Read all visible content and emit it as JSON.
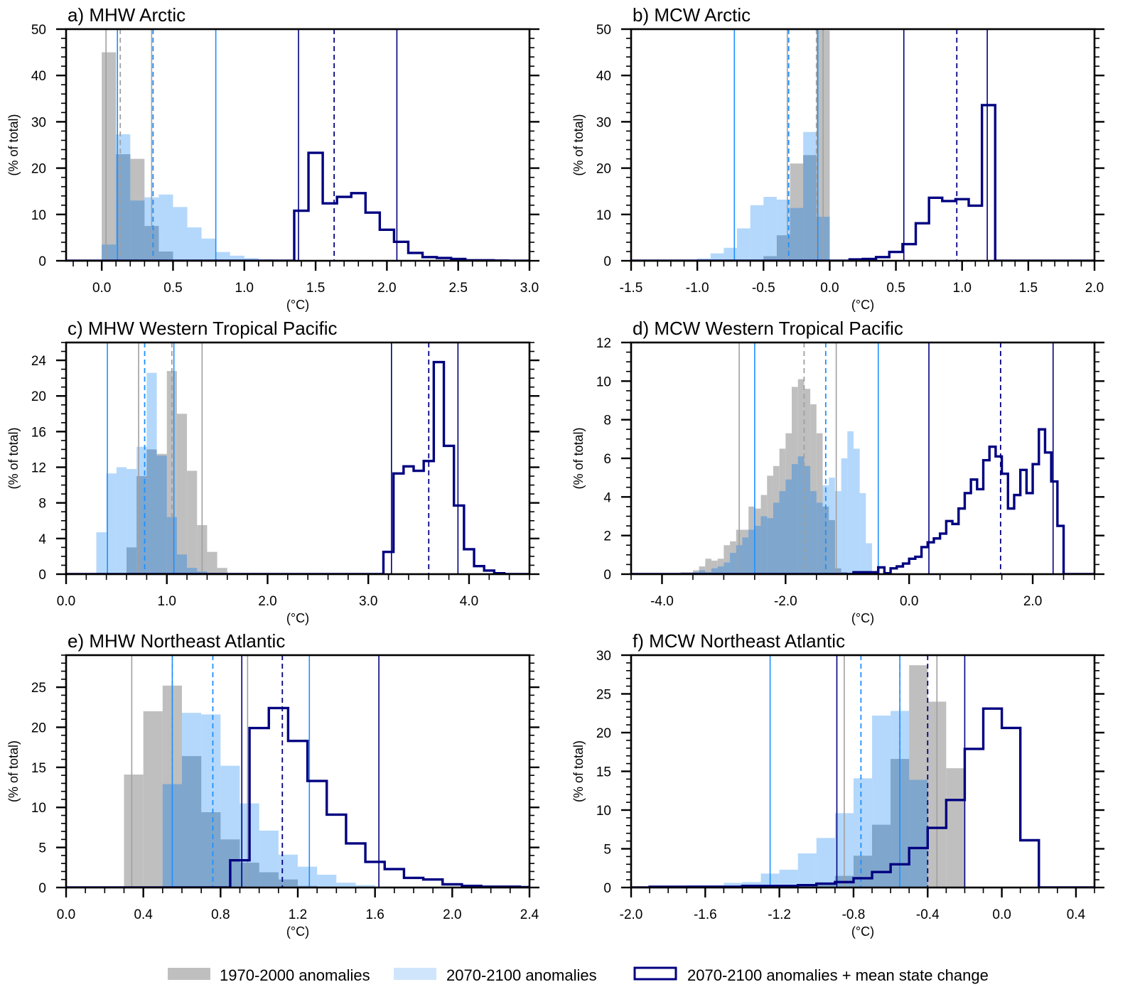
{
  "chart_data": [
    {
      "id": "a",
      "type": "bar",
      "title": "a) MHW Arctic",
      "xlabel": "(°C)",
      "ylabel": "(% of total)",
      "xlim": [
        -0.25,
        3.0
      ],
      "ylim": [
        0,
        50
      ],
      "xticks": [
        0.0,
        0.5,
        1.0,
        1.5,
        2.0,
        2.5,
        3.0
      ],
      "xtick_labels": [
        "0.0",
        "0.5",
        "1.0",
        "1.5",
        "2.0",
        "2.5",
        "3.0"
      ],
      "xminor": 0.1,
      "yticks": [
        0,
        10,
        20,
        30,
        40,
        50
      ],
      "ytick_labels": [
        "0",
        "10",
        "20",
        "30",
        "40",
        "50"
      ],
      "yminor": 2,
      "bin_width": 0.1,
      "series": [
        {
          "name": "1970-2000 anomalies",
          "start": 0.0,
          "values": [
            45,
            23,
            22,
            7.5,
            2
          ]
        },
        {
          "name": "2070-2100 anomalies",
          "start": 0.0,
          "values": [
            3.5,
            27.3,
            13,
            13.7,
            14.3,
            11.6,
            7.2,
            4.8,
            1.9,
            1.1,
            0.6,
            0.3
          ]
        },
        {
          "name": "2070-2100 anomalies + mean state change",
          "start": 1.35,
          "values": [
            10.8,
            23.3,
            12.4,
            13.8,
            14.6,
            10.4,
            6.7,
            4.1,
            1.7,
            0.8,
            0.6,
            0.4,
            0.1,
            0.1,
            0.05
          ]
        }
      ],
      "vlines": {
        "1970-2000 anomalies": {
          "solid": [
            0.03,
            0.35
          ],
          "dashed": [
            0.13
          ]
        },
        "2070-2100 anomalies": {
          "solid": [
            0.11,
            0.8
          ],
          "dashed": [
            0.36
          ]
        },
        "2070-2100 anomalies + mean state change": {
          "solid": [
            1.38,
            2.07
          ],
          "dashed": [
            1.63
          ]
        }
      }
    },
    {
      "id": "b",
      "type": "bar",
      "title": "b) MCW Arctic",
      "xlabel": "(°C)",
      "ylabel": "(% of total)",
      "xlim": [
        -1.5,
        2.0
      ],
      "ylim": [
        0,
        50
      ],
      "xticks": [
        -1.5,
        -1.0,
        -0.5,
        0.0,
        0.5,
        1.0,
        1.5,
        2.0
      ],
      "xtick_labels": [
        "-1.5",
        "-1.0",
        "-0.5",
        "0.0",
        "0.5",
        "1.0",
        "1.5",
        "2.0"
      ],
      "xminor": 0.1,
      "yticks": [
        0,
        10,
        20,
        30,
        40,
        50
      ],
      "ytick_labels": [
        "0",
        "10",
        "20",
        "30",
        "40",
        "50"
      ],
      "yminor": 2,
      "bin_width": 0.1,
      "series": [
        {
          "name": "1970-2000 anomalies",
          "start": -0.5,
          "values": [
            1,
            5.5,
            21,
            22.8,
            49.7
          ]
        },
        {
          "name": "2070-2100 anomalies",
          "start": -1.0,
          "values": [
            0.5,
            1.6,
            2.8,
            7,
            12,
            13.8,
            13.2,
            11.4,
            27.8,
            9.5
          ]
        },
        {
          "name": "2070-2100 anomalies + mean state change",
          "start": 0.15,
          "values": [
            0.3,
            0.4,
            0.8,
            1.9,
            3.6,
            8.1,
            13.6,
            12.9,
            13.3,
            11.9,
            33.6
          ]
        }
      ],
      "vlines": {
        "1970-2000 anomalies": {
          "solid": [
            -0.32,
            -0.05
          ],
          "dashed": [
            -0.1
          ]
        },
        "2070-2100 anomalies": {
          "solid": [
            -0.72,
            -0.09
          ],
          "dashed": [
            -0.31
          ]
        },
        "2070-2100 anomalies + mean state change": {
          "solid": [
            0.56,
            1.19
          ],
          "dashed": [
            0.96
          ]
        }
      }
    },
    {
      "id": "c",
      "type": "bar",
      "title": "c) MHW Western Tropical Pacific",
      "xlabel": "(°C)",
      "ylabel": "(% of total)",
      "xlim": [
        0.0,
        4.6
      ],
      "ylim": [
        0,
        26
      ],
      "xticks": [
        0.0,
        1.0,
        2.0,
        3.0,
        4.0
      ],
      "xtick_labels": [
        "0.0",
        "1.0",
        "2.0",
        "3.0",
        "4.0"
      ],
      "xminor": 0.2,
      "yticks": [
        0,
        4,
        8,
        12,
        16,
        20,
        24
      ],
      "ytick_labels": [
        "0",
        "4",
        "8",
        "12",
        "16",
        "20",
        "24"
      ],
      "yminor": 1,
      "bin_width": 0.1,
      "series": [
        {
          "name": "1970-2000 anomalies",
          "start": 0.6,
          "values": [
            3,
            11,
            14,
            13.5,
            22.8,
            18,
            11.6,
            5.5,
            2.5,
            0.7
          ]
        },
        {
          "name": "2070-2100 anomalies",
          "start": 0.3,
          "values": [
            4.7,
            11.3,
            12,
            11.8,
            14.3,
            22.6,
            13.3,
            6.4,
            2.2,
            0.7,
            0.3
          ]
        },
        {
          "name": "2070-2100 anomalies + mean state change",
          "start": 3.15,
          "values": [
            2.5,
            11.3,
            12.1,
            11.6,
            12.7,
            23.8,
            14.4,
            7.7,
            2.8,
            0.9,
            0.4,
            0.1
          ]
        }
      ],
      "vlines": {
        "1970-2000 anomalies": {
          "solid": [
            0.72,
            1.35
          ],
          "dashed": [
            1.05
          ]
        },
        "2070-2100 anomalies": {
          "solid": [
            0.41,
            1.07
          ],
          "dashed": [
            0.78
          ]
        },
        "2070-2100 anomalies + mean state change": {
          "solid": [
            3.23,
            3.89
          ],
          "dashed": [
            3.6
          ]
        }
      }
    },
    {
      "id": "d",
      "type": "bar",
      "title": "d) MCW Western Tropical Pacific",
      "xlabel": "(°C)",
      "ylabel": "(% of total)",
      "xlim": [
        -4.5,
        3.0
      ],
      "ylim": [
        0,
        12
      ],
      "xticks": [
        -4.0,
        -2.0,
        0.0,
        2.0
      ],
      "xtick_labels": [
        "-4.0",
        "-2.0",
        "0.0",
        "2.0"
      ],
      "xminor": 0.5,
      "yticks": [
        0,
        2,
        4,
        6,
        8,
        10,
        12
      ],
      "ytick_labels": [
        "0",
        "2",
        "4",
        "6",
        "8",
        "10",
        "12"
      ],
      "yminor": 0.5,
      "bin_width": 0.1,
      "series": [
        {
          "name": "1970-2000 anomalies",
          "start": -3.7,
          "values": [
            0.1,
            0.1,
            0.2,
            0.4,
            0.8,
            0.7,
            0.8,
            1.5,
            1.7,
            2.3,
            2.3,
            3.5,
            3.4,
            4.1,
            5.1,
            5.6,
            6.5,
            7.3,
            9.7,
            10.1,
            9.6,
            8.8,
            7.3,
            3.5,
            2.8,
            0.3,
            0.1
          ]
        },
        {
          "name": "2070-2100 anomalies",
          "start": -3.5,
          "values": [
            0.1,
            0.2,
            0.1,
            0.3,
            0.4,
            0.6,
            1.1,
            1.5,
            1.9,
            2.3,
            2.5,
            3.0,
            2.9,
            3.7,
            4.3,
            4.9,
            5.7,
            6.1,
            5.6,
            4.3,
            3.7,
            4.6,
            5.0,
            4.3,
            6.0,
            7.4,
            6.5,
            4.2,
            1.6
          ]
        },
        {
          "name": "2070-2100 anomalies + mean state change",
          "start": -0.9,
          "values": [
            0.1,
            0.1,
            0.1,
            0.1,
            0.35,
            0.05,
            0.3,
            0.4,
            0.55,
            0.8,
            0.9,
            1.4,
            1.65,
            1.85,
            2.1,
            2.75,
            2.6,
            3.4,
            4.2,
            4.9,
            4.4,
            5.9,
            6.6,
            6.1,
            5.2,
            3.4,
            4.1,
            5.4,
            4.2,
            5.7,
            7.5,
            6.3,
            4.8,
            2.5
          ]
        }
      ],
      "vlines": {
        "1970-2000 anomalies": {
          "solid": [
            -2.75,
            -1.18
          ],
          "dashed": [
            -1.7
          ]
        },
        "2070-2100 anomalies": {
          "solid": [
            -2.5,
            -0.5
          ],
          "dashed": [
            -1.35
          ]
        },
        "2070-2100 anomalies + mean state change": {
          "solid": [
            0.32,
            2.33
          ],
          "dashed": [
            1.48
          ]
        }
      }
    },
    {
      "id": "e",
      "type": "bar",
      "title": "e) MHW Northeast Atlantic",
      "xlabel": "(°C)",
      "ylabel": "(% of total)",
      "xlim": [
        0.0,
        2.4
      ],
      "ylim": [
        0,
        29
      ],
      "xticks": [
        0.0,
        0.4,
        0.8,
        1.2,
        1.6,
        2.0,
        2.4
      ],
      "xtick_labels": [
        "0.0",
        "0.4",
        "0.8",
        "1.2",
        "1.6",
        "2.0",
        "2.4"
      ],
      "xminor": 0.1,
      "yticks": [
        0,
        5,
        10,
        15,
        20,
        25
      ],
      "ytick_labels": [
        "0",
        "5",
        "10",
        "15",
        "20",
        "25"
      ],
      "yminor": 1,
      "bin_width": 0.1,
      "series": [
        {
          "name": "1970-2000 anomalies",
          "start": 0.3,
          "values": [
            14.1,
            22,
            25.2,
            16.4,
            9.4,
            6,
            3.1,
            1.9,
            1.0,
            0.2
          ]
        },
        {
          "name": "2070-2100 anomalies",
          "start": 0.5,
          "values": [
            12.9,
            21.8,
            21.6,
            15.2,
            10.5,
            7.1,
            4.1,
            2.6,
            1.6,
            0.6,
            0.3,
            0.1
          ]
        },
        {
          "name": "2070-2100 anomalies + mean state change",
          "start": 0.85,
          "values": [
            3.4,
            19.9,
            22.4,
            18.3,
            13.3,
            9.1,
            5.5,
            3.2,
            2.3,
            1.2,
            1.0,
            0.4,
            0.2,
            0.1,
            0.1,
            0.05
          ]
        }
      ],
      "vlines": {
        "1970-2000 anomalies": {
          "solid": [
            0.34,
            0.94
          ],
          "dashed": [
            0.55
          ]
        },
        "2070-2100 anomalies": {
          "solid": [
            0.55,
            1.26
          ],
          "dashed": [
            0.76
          ]
        },
        "2070-2100 anomalies + mean state change": {
          "solid": [
            0.91,
            1.62
          ],
          "dashed": [
            1.12
          ]
        }
      }
    },
    {
      "id": "f",
      "type": "bar",
      "title": "f) MCW Northeast Atlantic",
      "xlabel": "(°C)",
      "ylabel": "(% of total)",
      "xlim": [
        -2.0,
        0.5
      ],
      "ylim": [
        0,
        30
      ],
      "xticks": [
        -2.0,
        -1.6,
        -1.2,
        -0.8,
        -0.4,
        0.0,
        0.4
      ],
      "xtick_labels": [
        "-2.0",
        "-1.6",
        "-1.2",
        "-0.8",
        "-0.4",
        "0.0",
        "0.4"
      ],
      "xminor": 0.1,
      "yticks": [
        0,
        5,
        10,
        15,
        20,
        25,
        30
      ],
      "ytick_labels": [
        "0",
        "5",
        "10",
        "15",
        "20",
        "25",
        "30"
      ],
      "yminor": 1,
      "bin_width": 0.1,
      "series": [
        {
          "name": "1970-2000 anomalies",
          "start": -1.0,
          "values": [
            0.5,
            1.5,
            4.1,
            8.1,
            16.6,
            28.7,
            24,
            15.4
          ]
        },
        {
          "name": "2070-2100 anomalies",
          "start": -1.9,
          "values": [
            0.1,
            0.2,
            0.3,
            0.3,
            0.6,
            0.7,
            1.8,
            2.3,
            4.4,
            6.4,
            9.6,
            14.1,
            22.2,
            22.8,
            13.9
          ]
        },
        {
          "name": "2070-2100 anomalies + mean state change",
          "start": -1.9,
          "values": [
            0.1,
            0.1,
            0.1,
            0.1,
            0.1,
            0.2,
            0.2,
            0.2,
            0.3,
            0.5,
            0.7,
            1.2,
            2.0,
            3.0,
            5.1,
            7.7,
            11.3,
            17.9,
            23.1,
            20.6,
            6.1
          ]
        }
      ],
      "vlines": {
        "1970-2000 anomalies": {
          "solid": [
            -0.85,
            -0.35
          ],
          "dashed": [
            -0.55
          ]
        },
        "2070-2100 anomalies": {
          "solid": [
            -1.25,
            -0.55
          ],
          "dashed": [
            -0.76
          ]
        },
        "2070-2100 anomalies + mean state change": {
          "solid": [
            -0.89,
            -0.2
          ],
          "dashed": [
            -0.4
          ]
        }
      }
    }
  ],
  "legend": {
    "placement": "bottom-center",
    "items": [
      {
        "label": "1970-2000 anomalies",
        "style": "gray-fill"
      },
      {
        "label": "2070-2100 anomalies",
        "style": "lightblue-fill"
      },
      {
        "label": "2070-2100 anomalies + mean state change",
        "style": "navy-outline"
      }
    ]
  },
  "colors": {
    "hist_1970_2000": "#bfbfbf",
    "hist_2070_2100": "#b3d7fb",
    "overlap": "#7fa6cd",
    "mean_state_line": "#000080",
    "vline_gray": "#a0a0a0",
    "vline_blue": "#1e90ff",
    "vline_navy": "#000080"
  }
}
